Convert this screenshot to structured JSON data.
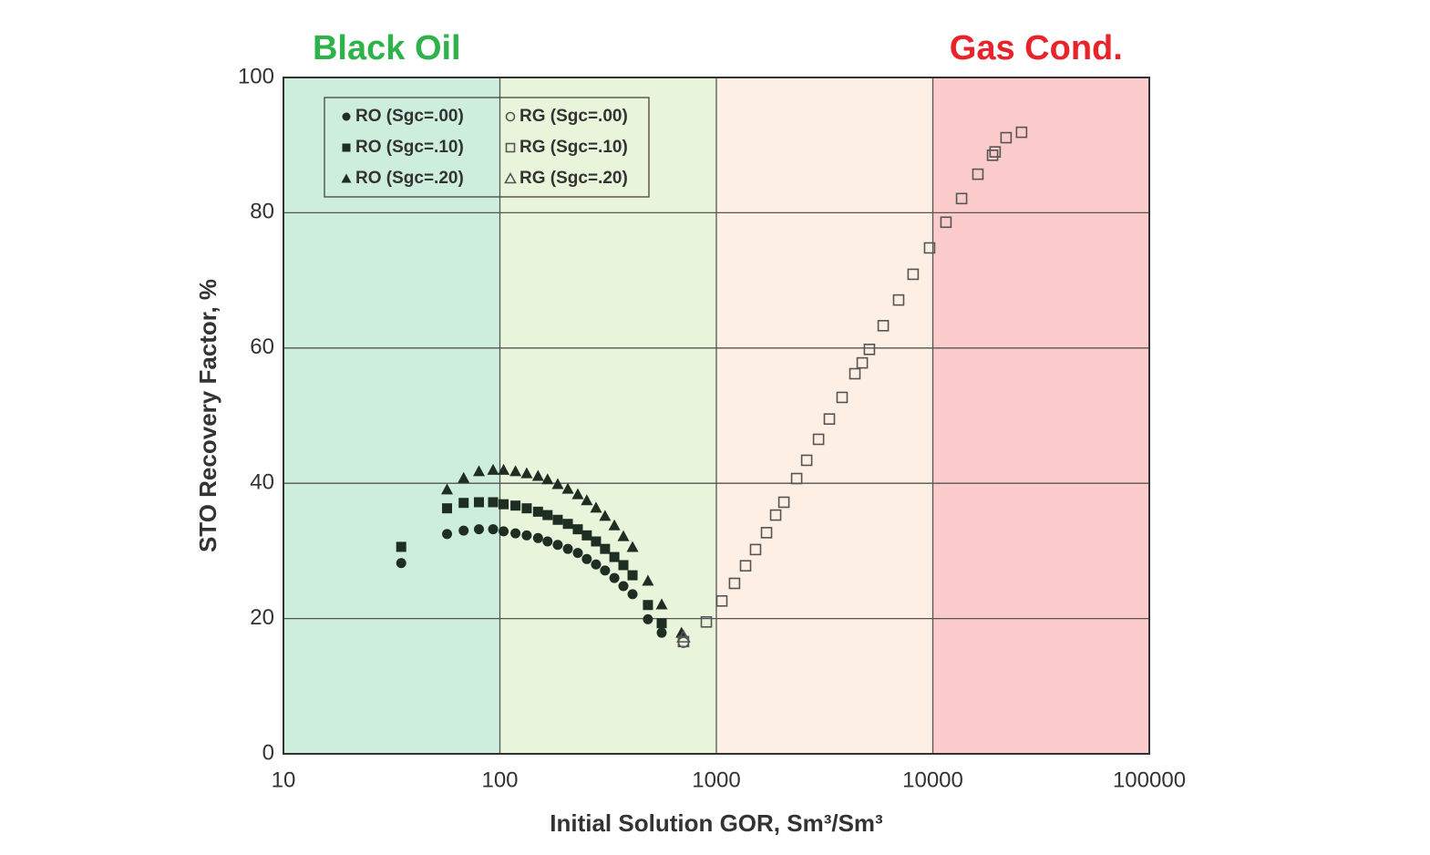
{
  "chart_data": {
    "type": "scatter",
    "xlabel": "Initial Solution GOR, Sm³/Sm³",
    "ylabel": "STO Recovery Factor, %",
    "xscale": "log",
    "xlim": [
      10,
      100000
    ],
    "ylim": [
      0,
      100
    ],
    "xticks": [
      10,
      100,
      1000,
      10000,
      100000
    ],
    "yticks": [
      0,
      20,
      40,
      60,
      80,
      100
    ],
    "grid": true,
    "legend": "upper left",
    "annotations": [
      {
        "text": "Black Oil",
        "color": "#2db34a",
        "x": 30
      },
      {
        "text": "Gas Cond.",
        "color": "#e8232a",
        "x": 30000
      }
    ],
    "bands": [
      {
        "from": 10,
        "to": 100,
        "color": "#cdeedc"
      },
      {
        "from": 100,
        "to": 1000,
        "color": "#e8f5db"
      },
      {
        "from": 1000,
        "to": 10000,
        "color": "#fdefe4"
      },
      {
        "from": 10000,
        "to": 100000,
        "color": "#fccbcb"
      }
    ],
    "series": [
      {
        "name": "RO (Sgc=.00)",
        "color": "#1f2e23",
        "marker": "circle",
        "filled": true,
        "x": [
          35,
          57,
          68,
          80,
          93,
          104,
          118,
          133,
          150,
          166,
          185,
          206,
          229,
          252,
          278,
          306,
          338,
          372,
          410,
          483,
          559
        ],
        "values": [
          28.2,
          32.5,
          33.0,
          33.2,
          33.2,
          32.9,
          32.6,
          32.3,
          31.9,
          31.4,
          30.9,
          30.3,
          29.7,
          28.8,
          28.0,
          27.1,
          26.0,
          24.8,
          23.6,
          19.9,
          17.9
        ]
      },
      {
        "name": "RO (Sgc=.10)",
        "color": "#1f2e23",
        "marker": "square",
        "filled": true,
        "x": [
          35,
          57,
          68,
          80,
          93,
          104,
          118,
          133,
          150,
          166,
          185,
          206,
          229,
          252,
          278,
          306,
          338,
          372,
          410,
          483,
          559
        ],
        "values": [
          30.6,
          36.3,
          37.1,
          37.2,
          37.2,
          36.9,
          36.7,
          36.3,
          35.8,
          35.3,
          34.6,
          34.0,
          33.2,
          32.3,
          31.4,
          30.3,
          29.1,
          27.9,
          26.4,
          22.0,
          19.3
        ]
      },
      {
        "name": "RO (Sgc=.20)",
        "color": "#1f2e23",
        "marker": "triangle",
        "filled": true,
        "x": [
          57,
          68,
          80,
          93,
          104,
          118,
          133,
          150,
          166,
          185,
          206,
          229,
          252,
          278,
          306,
          338,
          372,
          410,
          483,
          559,
          690
        ],
        "values": [
          39.1,
          40.8,
          41.8,
          42.0,
          42.0,
          41.8,
          41.5,
          41.1,
          40.6,
          39.9,
          39.2,
          38.4,
          37.5,
          36.4,
          35.2,
          33.8,
          32.2,
          30.6,
          25.6,
          22.1,
          17.9
        ]
      },
      {
        "name": "RG (Sgc=.00)",
        "color": "#555555",
        "marker": "circle",
        "filled": false,
        "x": [
          705
        ],
        "values": [
          16.5
        ]
      },
      {
        "name": "RG (Sgc=.10)",
        "color": "#555555",
        "marker": "square",
        "filled": false,
        "x": [
          705,
          899,
          1060,
          1213,
          1364,
          1517,
          1705,
          1879,
          2051,
          2349,
          2614,
          2965,
          3327,
          3810,
          4365,
          4721,
          5093,
          5900,
          6950,
          8110,
          9660,
          11500,
          13580,
          16150,
          18880,
          19400,
          21800,
          25700
        ],
        "values": [
          16.6,
          19.5,
          22.6,
          25.2,
          27.8,
          30.2,
          32.7,
          35.3,
          37.2,
          40.7,
          43.4,
          46.5,
          49.5,
          52.7,
          56.2,
          57.8,
          59.8,
          63.3,
          67.1,
          70.9,
          74.8,
          78.6,
          82.1,
          85.7,
          88.5,
          89.0,
          91.1,
          91.9
        ]
      },
      {
        "name": "RG (Sgc=.20)",
        "color": "#555555",
        "marker": "triangle",
        "filled": false,
        "x": [
          705
        ],
        "values": [
          17.3
        ]
      }
    ]
  }
}
